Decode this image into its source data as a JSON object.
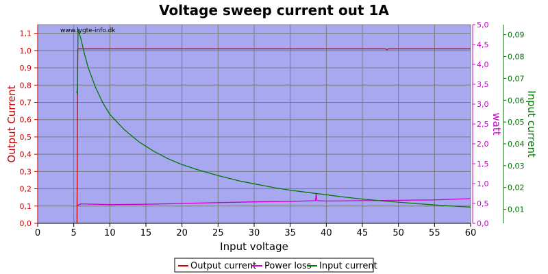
{
  "chart_data": {
    "type": "line",
    "title": "Voltage sweep current out 1A",
    "watermark": "www.lygte-info.dk",
    "xlabel": "Input voltage",
    "x_ticks": [
      0,
      5,
      10,
      15,
      20,
      25,
      30,
      35,
      40,
      45,
      50,
      55,
      60
    ],
    "xlim": [
      0,
      60
    ],
    "grid": true,
    "legend_position": "bottom-center",
    "axes": {
      "left": {
        "label": "Output Current",
        "color": "#cc0000",
        "ylim": [
          0,
          1.15
        ],
        "ticks": [
          0,
          0.1,
          0.2,
          0.3,
          0.4,
          0.5,
          0.6,
          0.7,
          0.8,
          0.9,
          1.0,
          1.1
        ],
        "tick_labels": [
          "0,0",
          "0,1",
          "0,2",
          "0,3",
          "0,4",
          "0,5",
          "0,6",
          "0,7",
          "0,8",
          "0,9",
          "1,0",
          "1,1"
        ]
      },
      "right1": {
        "label": "watt",
        "color": "#cc00cc",
        "ylim": [
          0,
          5.0
        ],
        "ticks": [
          0,
          0.5,
          1,
          1.5,
          2,
          2.5,
          3,
          3.5,
          4,
          4.5,
          5
        ],
        "tick_labels": [
          "0,0",
          "0,5",
          "1,0",
          "1,5",
          "2,0",
          "2,5",
          "3,0",
          "3,5",
          "4,0",
          "4,5",
          "5,0"
        ]
      },
      "right2": {
        "label": "Input current",
        "color": "#007700",
        "ylim": [
          0.0036,
          0.0946
        ],
        "ticks": [
          0.01,
          0.02,
          0.03,
          0.04,
          0.05,
          0.06,
          0.07,
          0.08,
          0.09
        ],
        "tick_labels": [
          "0,01",
          "0,02",
          "0,03",
          "0,04",
          "0,05",
          "0,06",
          "0,07",
          "0,08",
          "0,09"
        ]
      }
    },
    "series": [
      {
        "name": "Output current",
        "axis": "left",
        "color": "#cc0000",
        "x": [
          5.4,
          5.45,
          5.55,
          6,
          10,
          20,
          30,
          40,
          48.2,
          48.4,
          48.6,
          50,
          60
        ],
        "y": [
          0,
          0,
          1.01,
          1.01,
          1.01,
          1.01,
          1.01,
          1.01,
          1.01,
          1.005,
          1.01,
          1.01,
          1.01
        ]
      },
      {
        "name": "Power loss",
        "axis": "right1",
        "color": "#cc00cc",
        "x": [
          5.5,
          6,
          8,
          10,
          15,
          20,
          25,
          30,
          35,
          38.5,
          38.6,
          38.7,
          40,
          45,
          50,
          55,
          60
        ],
        "y": [
          0.45,
          0.49,
          0.48,
          0.47,
          0.48,
          0.5,
          0.52,
          0.54,
          0.55,
          0.57,
          0.75,
          0.57,
          0.56,
          0.57,
          0.58,
          0.59,
          0.62
        ]
      },
      {
        "name": "Input current",
        "axis": "right2",
        "color": "#007700",
        "x": [
          5.4,
          5.5,
          5.6,
          6,
          6.5,
          7,
          8,
          9,
          10,
          12,
          14,
          16,
          18,
          20,
          22,
          25,
          28,
          30,
          33,
          35,
          38,
          40,
          42,
          45,
          48,
          50,
          53,
          55,
          58,
          60
        ],
        "y": [
          0.064,
          0.063,
          0.0925,
          0.088,
          0.081,
          0.075,
          0.066,
          0.059,
          0.0535,
          0.0465,
          0.041,
          0.0368,
          0.0333,
          0.0305,
          0.0283,
          0.0255,
          0.023,
          0.0217,
          0.0198,
          0.0188,
          0.0175,
          0.0167,
          0.0158,
          0.0147,
          0.0138,
          0.0133,
          0.0125,
          0.012,
          0.0114,
          0.011
        ]
      }
    ]
  }
}
